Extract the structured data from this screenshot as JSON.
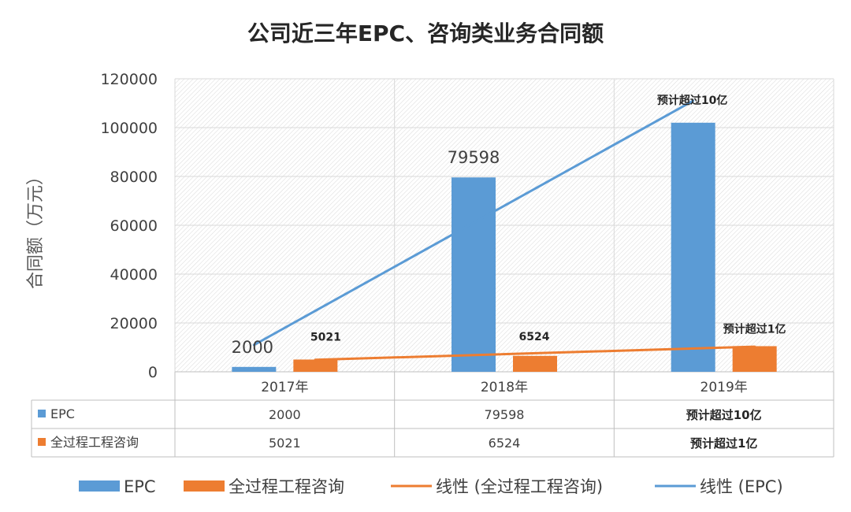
{
  "chart_data": {
    "type": "bar",
    "title": "公司近三年EPC、咨询类业务合同额",
    "ylabel": "合同额（万元）",
    "xlabel": "",
    "ylim": [
      0,
      120000
    ],
    "yticks": [
      "0",
      "20000",
      "40000",
      "60000",
      "80000",
      "100000",
      "120000"
    ],
    "categories": [
      "2017年",
      "2018年",
      "2019年"
    ],
    "series": [
      {
        "name": "EPC",
        "color": "#5b9bd5",
        "values": [
          2000,
          79598,
          102000
        ],
        "data_labels": [
          "2000",
          "79598",
          "预计超过10亿"
        ],
        "table_values": [
          "2000",
          "79598",
          "预计超过10亿"
        ]
      },
      {
        "name": "全过程工程咨询",
        "color": "#ed7d31",
        "values": [
          5021,
          6524,
          10500
        ],
        "data_labels": [
          "5021",
          "6524",
          "预计超过1亿"
        ],
        "table_values": [
          "5021",
          "6524",
          "预计超过1亿"
        ]
      }
    ],
    "trendlines": [
      {
        "name": "线性 (全过程工程咨询)",
        "color": "#ed7d31",
        "series": 1,
        "start": 4900,
        "end": 10300
      },
      {
        "name": "线性 (EPC)",
        "color": "#5b9bd5",
        "series": 0,
        "start": 11000,
        "end": 111000
      }
    ],
    "grid": true,
    "legend_position": "bottom",
    "data_table": true
  }
}
